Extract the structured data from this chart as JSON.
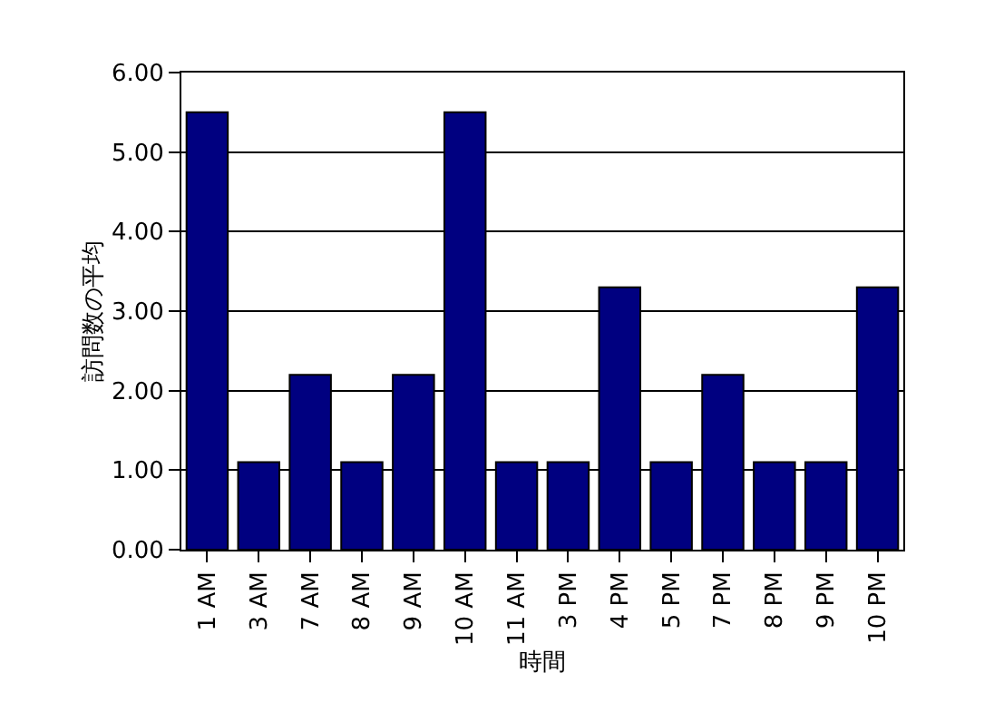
{
  "chart_data": {
    "type": "bar",
    "xlabel": "時間",
    "ylabel": "訪問数の平均",
    "categories": [
      "1 AM",
      "3 AM",
      "7 AM",
      "8 AM",
      "9 AM",
      "10 AM",
      "11 AM",
      "3 PM",
      "4 PM",
      "5 PM",
      "7 PM",
      "8 PM",
      "9 PM",
      "10 PM"
    ],
    "values": [
      5.5,
      1.1,
      2.2,
      1.1,
      2.2,
      5.5,
      1.1,
      1.1,
      3.3,
      1.1,
      2.2,
      1.1,
      1.1,
      3.3
    ],
    "color": "#000080",
    "ylim": [
      0,
      6
    ],
    "yticks": [
      {
        "value": 0,
        "label": "0.00"
      },
      {
        "value": 1,
        "label": "1.00"
      },
      {
        "value": 2,
        "label": "2.00"
      },
      {
        "value": 3,
        "label": "3.00"
      },
      {
        "value": 4,
        "label": "4.00"
      },
      {
        "value": 5,
        "label": "5.00"
      },
      {
        "value": 6,
        "label": "6.00"
      }
    ],
    "grid": "y",
    "legend": false
  }
}
